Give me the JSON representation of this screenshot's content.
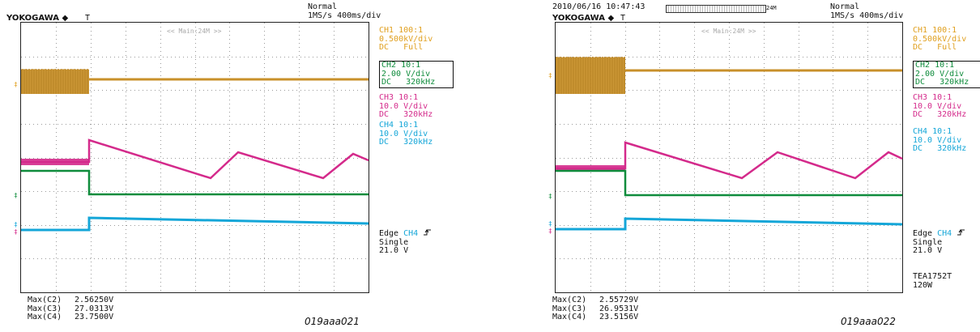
{
  "left": {
    "date_time": "",
    "trigger_mode": "Normal",
    "timebase": "1MS/s 400ms/div",
    "brand": "YOKOGAWA",
    "brand_mark": "◆",
    "trigger_marker": "T",
    "zoom_label": "<< Main:24M >>",
    "ch1": {
      "name": "CH1 100:1",
      "scale": "0.500kV/div",
      "coupling": "DC   Full"
    },
    "ch2": {
      "name": "CH2 10:1",
      "scale": "2.00 V/div",
      "coupling": "DC   320kHz"
    },
    "ch3": {
      "name": "CH3 10:1",
      "scale": "10.0 V/div",
      "coupling": "DC   320kHz"
    },
    "ch4": {
      "name": "CH4 10:1",
      "scale": "10.0 V/div",
      "coupling": "DC   320kHz"
    },
    "trigger": {
      "type": "Edge",
      "source": "CH4",
      "slope_icon": "rising-edge-icon",
      "mode": "Single",
      "level": "21.0 V"
    },
    "measurements": [
      {
        "label": "Max(C2)",
        "value": "2.56250V"
      },
      {
        "label": "Max(C3)",
        "value": "27.0313V"
      },
      {
        "label": "Max(C4)",
        "value": "23.7500V"
      }
    ],
    "caption": "019aaa021"
  },
  "right": {
    "date_time": "2010/06/16 10:47:43",
    "record_length": "24M",
    "trigger_mode": "Normal",
    "timebase": "1MS/s 400ms/div",
    "brand": "YOKOGAWA",
    "brand_mark": "◆",
    "trigger_marker": "T",
    "zoom_label": "<< Main:24M >>",
    "ch1": {
      "name": "CH1 100:1",
      "scale": "0.500kV/div",
      "coupling": "DC   Full"
    },
    "ch2": {
      "name": "CH2 10:1",
      "scale": "2.00 V/div",
      "coupling": "DC   320kHz"
    },
    "ch3": {
      "name": "CH3 10:1",
      "scale": "10.0 V/div",
      "coupling": "DC   320kHz"
    },
    "ch4": {
      "name": "CH4 10:1",
      "scale": "10.0 V/div",
      "coupling": "DC   320kHz"
    },
    "trigger": {
      "type": "Edge",
      "source": "CH4",
      "slope_icon": "rising-edge-icon",
      "mode": "Single",
      "level": "21.0 V"
    },
    "device": "TEA1752T",
    "power": "120W",
    "measurements": [
      {
        "label": "Max(C2)",
        "value": "2.55729V"
      },
      {
        "label": "Max(C3)",
        "value": "26.9531V"
      },
      {
        "label": "Max(C4)",
        "value": "23.5156V"
      }
    ],
    "caption": "019aaa022"
  },
  "colors": {
    "ch1": "#e0a020",
    "ch1_trace": "#c8902a",
    "ch2": "#0f8c3c",
    "ch3": "#d42a8b",
    "ch4": "#14a6d8",
    "grid_dots": "#9a9a9a"
  }
}
